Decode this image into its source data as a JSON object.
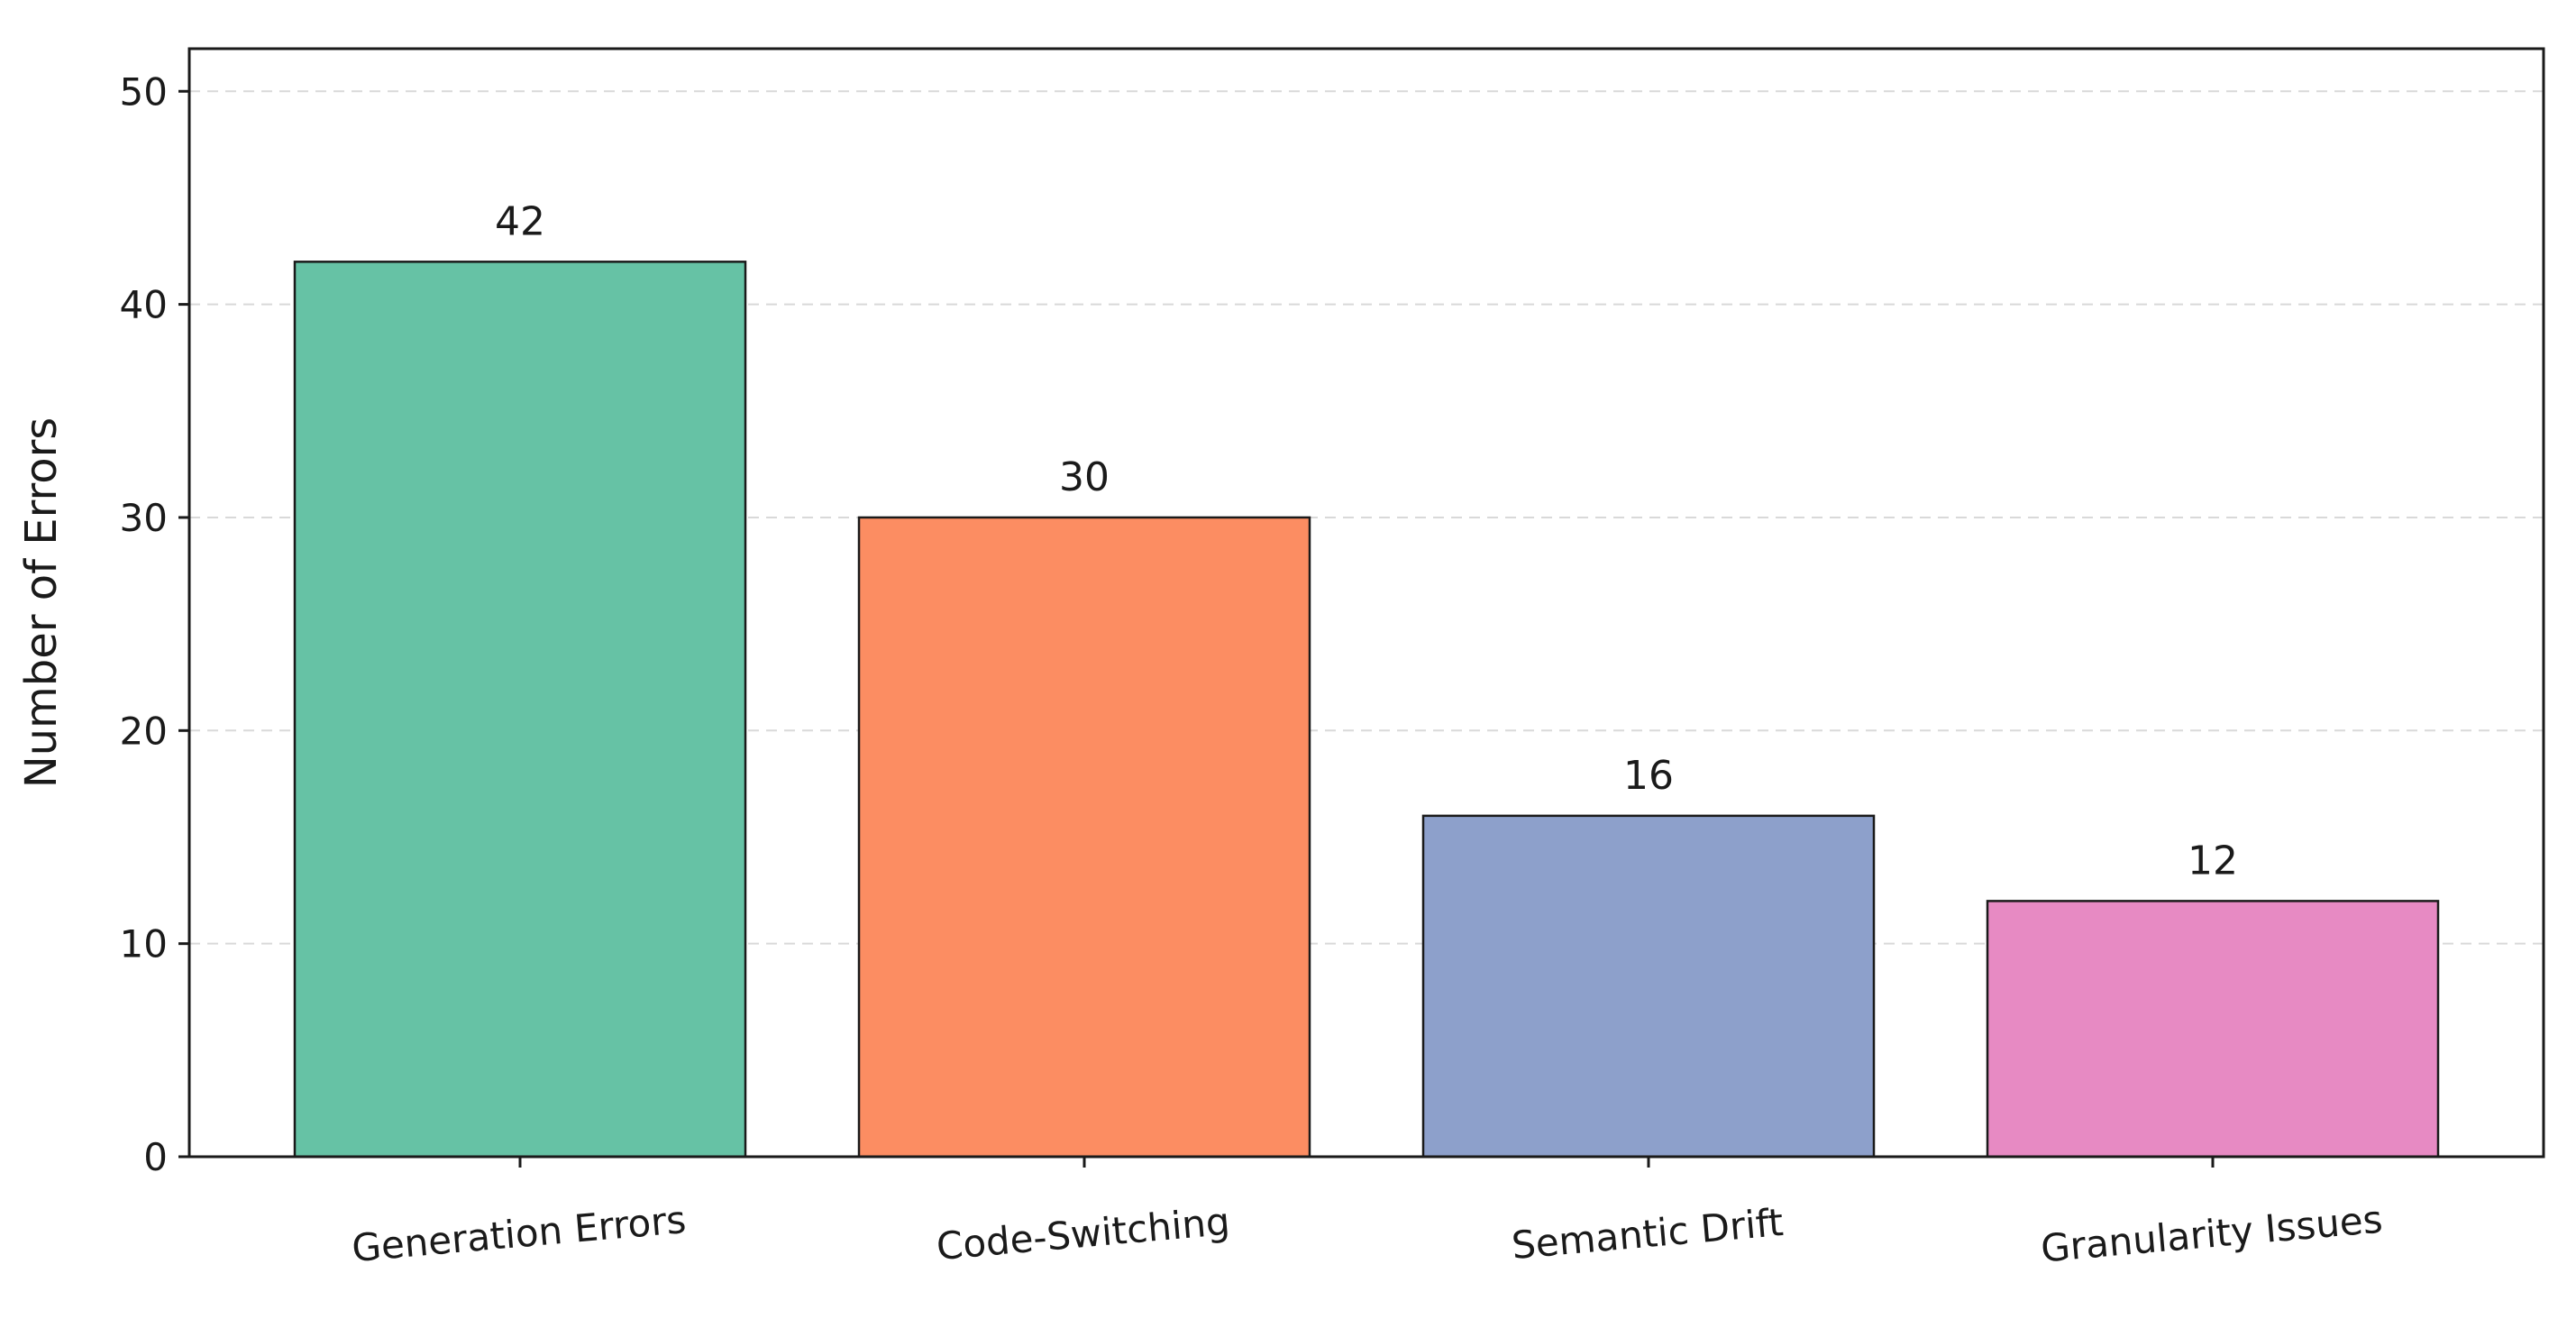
{
  "chart_data": {
    "type": "bar",
    "title": "",
    "xlabel": "",
    "ylabel": "Number of Errors",
    "categories": [
      "Generation Errors",
      "Code-Switching",
      "Semantic Drift",
      "Granularity Issues"
    ],
    "values": [
      42,
      30,
      16,
      12
    ],
    "colors": [
      "#66c2a5",
      "#fc8d62",
      "#8da0cb",
      "#e78ac3"
    ],
    "ylim": [
      0,
      52
    ],
    "yticks": [
      0,
      10,
      20,
      30,
      40,
      50
    ],
    "grid": {
      "axis": "y",
      "style": "dashed",
      "color": "#d9d9d9"
    },
    "value_labels": true,
    "tick_rotation": "slight",
    "legend": "none"
  }
}
